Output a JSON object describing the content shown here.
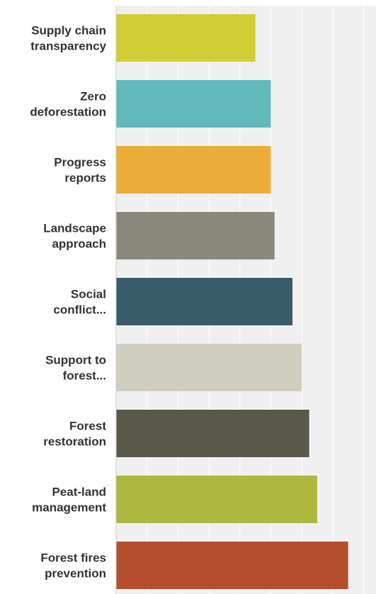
{
  "chart_data": {
    "type": "bar",
    "orientation": "horizontal",
    "categories": [
      "Supply chain transparency",
      "Zero deforestation",
      "Progress reports",
      "Landscape approach",
      "Social conflict...",
      "Support to forest...",
      "Forest restoration",
      "Peat-land management",
      "Forest fires prevention"
    ],
    "values": [
      2.25,
      2.5,
      2.5,
      2.56,
      2.85,
      3.0,
      3.12,
      3.25,
      3.75
    ],
    "xlim": [
      0,
      4.2
    ],
    "grid": true,
    "colors": [
      "#d1cd35",
      "#62b9ba",
      "#ebad37",
      "#8a887a",
      "#385c6a",
      "#d0cdc1",
      "#5a584b",
      "#aeb83e",
      "#b54f2e"
    ],
    "plot_background": "#f0f0f0",
    "grid_color": "#ffffff",
    "axis_color": "#cccccc"
  }
}
